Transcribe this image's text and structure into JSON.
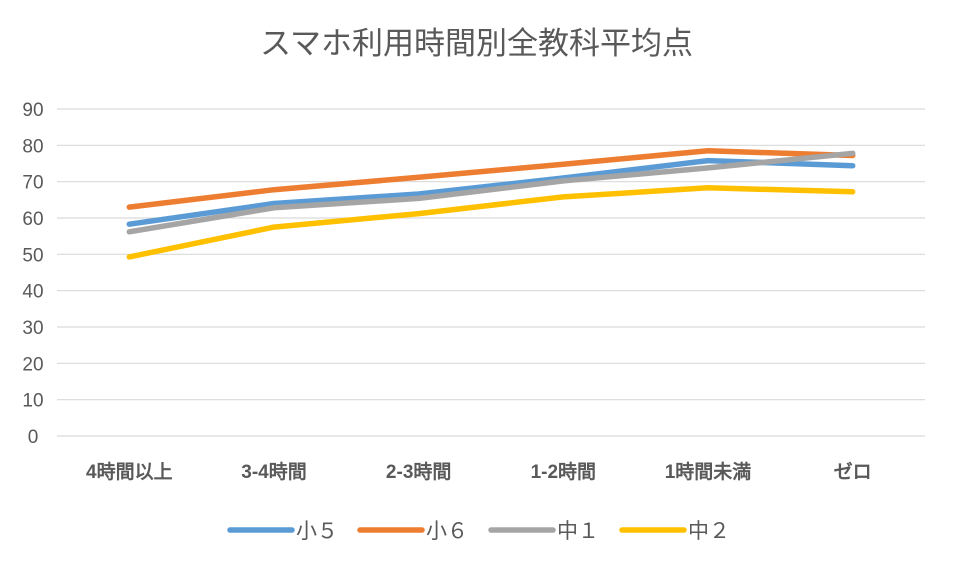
{
  "chart_data": {
    "type": "line",
    "title": "スマホ利用時間別全教科平均点",
    "xlabel": "",
    "ylabel": "",
    "ylim": [
      0,
      90
    ],
    "yticks": [
      0,
      10,
      20,
      30,
      40,
      50,
      60,
      70,
      80,
      90
    ],
    "grid": true,
    "legend_position": "bottom",
    "categories": [
      "4時間以上",
      "3-4時間",
      "2-3時間",
      "1-2時間",
      "1時間未満",
      "ゼロ"
    ],
    "series": [
      {
        "name": "小５",
        "color": "#5B9BD5",
        "values": [
          58.3,
          64.0,
          66.6,
          71.0,
          75.8,
          74.4
        ]
      },
      {
        "name": "小６",
        "color": "#ED7D31",
        "values": [
          63.0,
          67.8,
          71.2,
          74.8,
          78.5,
          77.2
        ]
      },
      {
        "name": "中１",
        "color": "#A5A5A5",
        "values": [
          56.2,
          62.8,
          65.4,
          70.2,
          73.8,
          77.8
        ]
      },
      {
        "name": "中２",
        "color": "#FFC000",
        "values": [
          49.3,
          57.5,
          61.2,
          65.8,
          68.3,
          67.2
        ]
      }
    ]
  }
}
